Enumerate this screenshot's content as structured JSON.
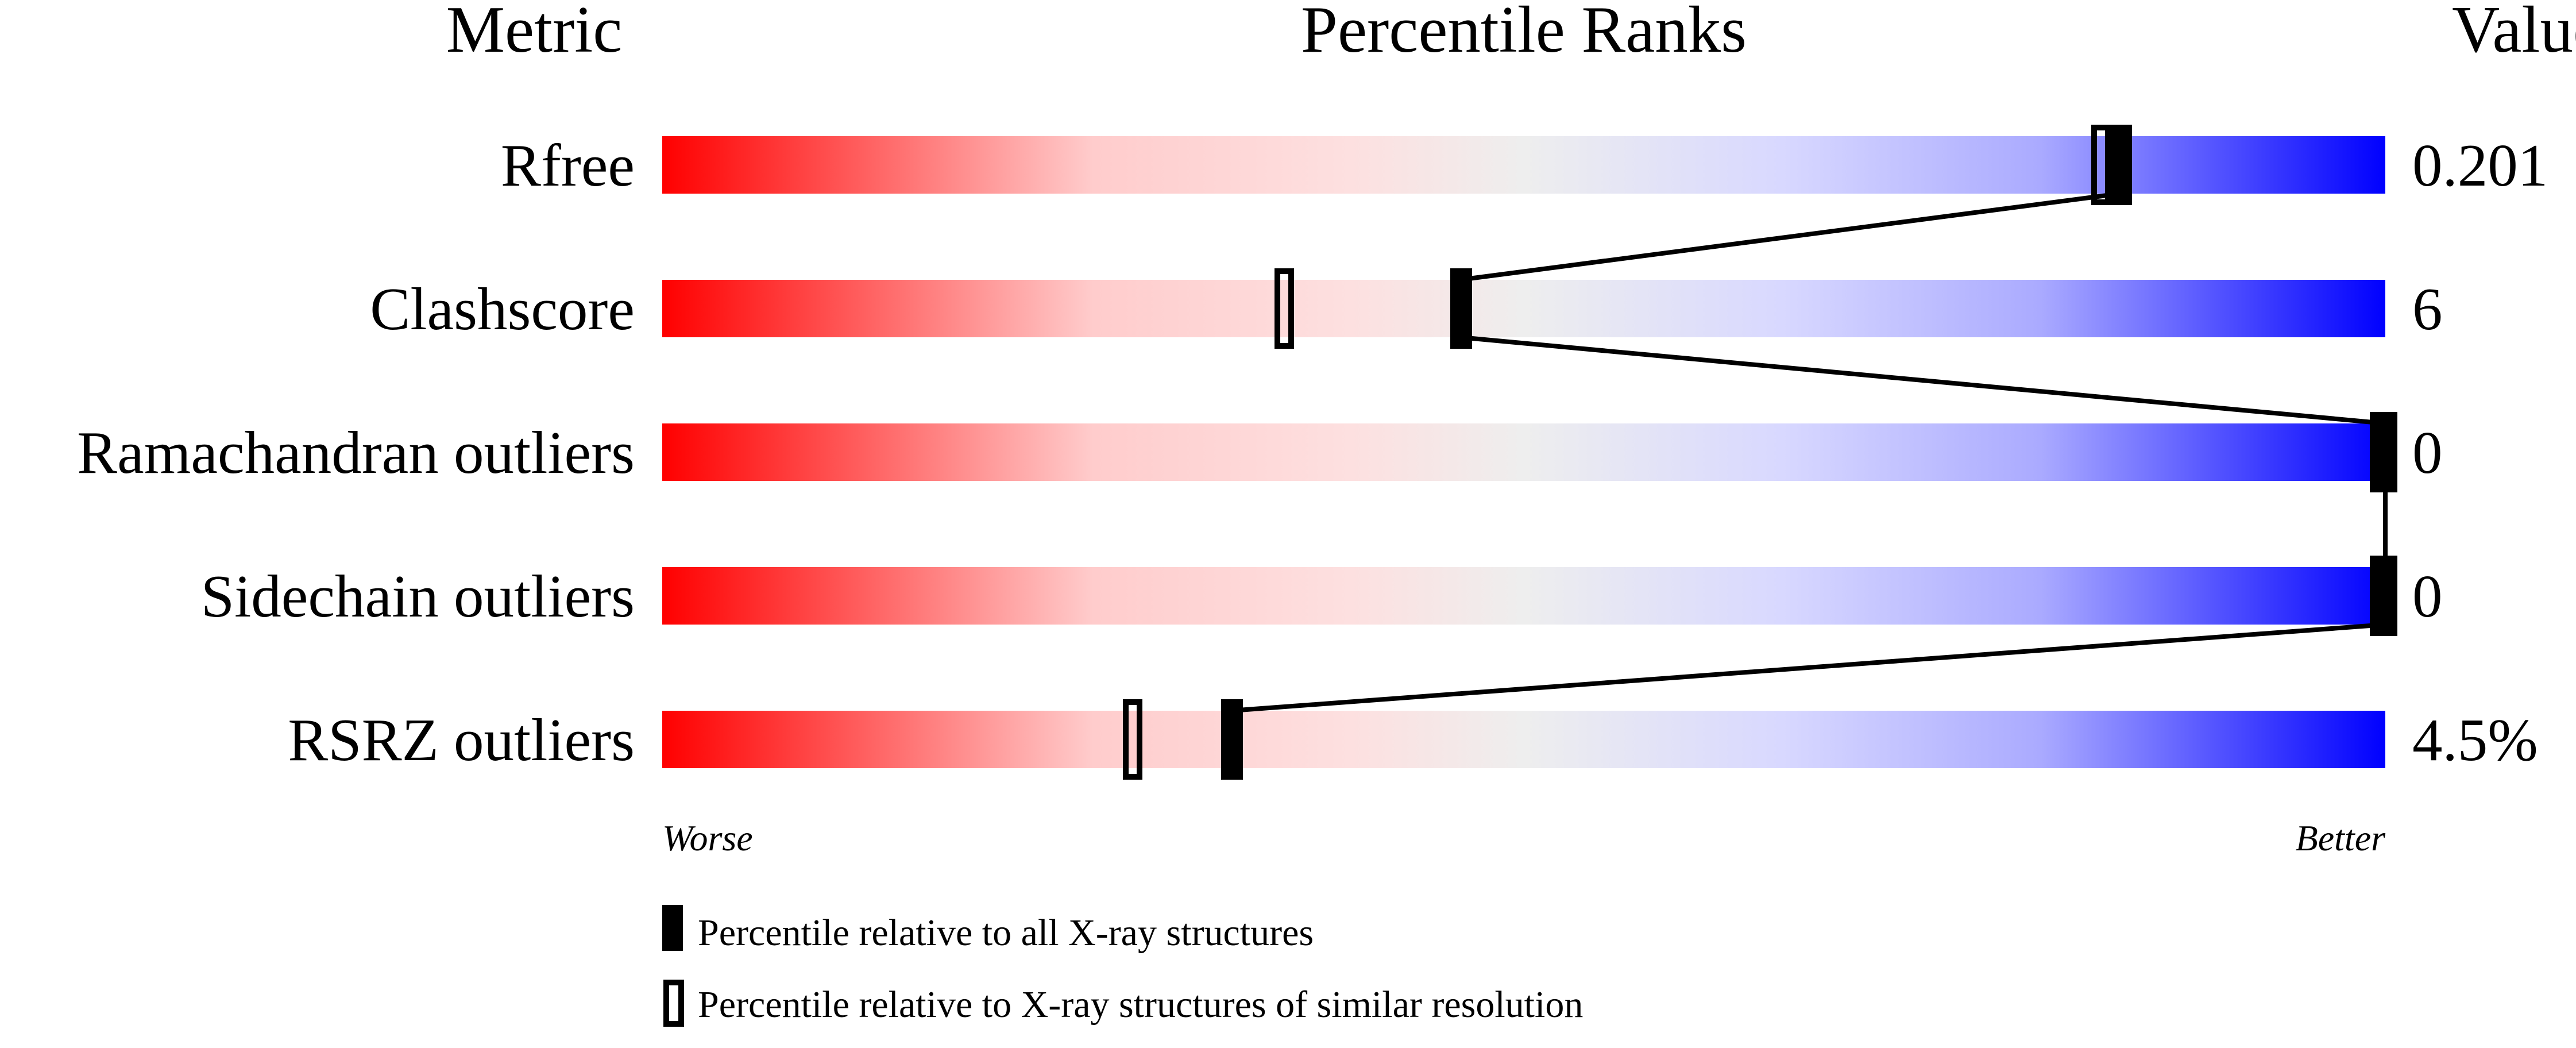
{
  "chart_data": {
    "type": "percentile-slider",
    "headers": {
      "metric": "Metric",
      "ranks": "Percentile Ranks",
      "value": "Value"
    },
    "xlim": [
      0,
      100
    ],
    "axis_labels": {
      "left": "Worse",
      "right": "Better"
    },
    "gradient_colors": [
      "#ff0000",
      "#ffcccc",
      "#eeeeee",
      "#d8d8ff",
      "#0000ff"
    ],
    "rows": [
      {
        "metric": "Rfree",
        "value": "0.201",
        "percentile_all": 84.6,
        "percentile_similar": 83.5
      },
      {
        "metric": "Clashscore",
        "value": "6",
        "percentile_all": 46.3,
        "percentile_similar": 36.1
      },
      {
        "metric": "Ramachandran outliers",
        "value": "0",
        "percentile_all": 100,
        "percentile_similar": 100
      },
      {
        "metric": "Sidechain outliers",
        "value": "0",
        "percentile_all": 100,
        "percentile_similar": 100
      },
      {
        "metric": "RSRZ outliers",
        "value": "4.5%",
        "percentile_all": 33.0,
        "percentile_similar": 27.3
      }
    ],
    "legend": [
      {
        "marker": "filled",
        "label": "Percentile relative to all X-ray structures"
      },
      {
        "marker": "open",
        "label": "Percentile relative to X-ray structures of similar resolution"
      }
    ]
  }
}
